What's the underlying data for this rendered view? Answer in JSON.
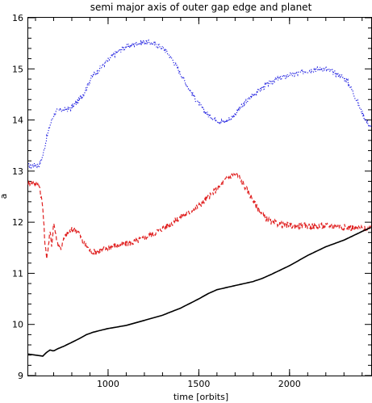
{
  "chart_data": {
    "type": "line",
    "title": "semi major axis of outer gap edge and planet",
    "xlabel": "time [orbits]",
    "ylabel": "a",
    "xlim": [
      560,
      2450
    ],
    "ylim": [
      9,
      16
    ],
    "xticks": [
      1000,
      1500,
      2000
    ],
    "yticks": [
      9,
      10,
      11,
      12,
      13,
      14,
      15,
      16
    ],
    "grid": false,
    "series": [
      {
        "color": "#2020e0",
        "style": "dotted",
        "noise": 0.05,
        "x": [
          560,
          620,
          640,
          660,
          680,
          700,
          720,
          760,
          790,
          830,
          850,
          870,
          890,
          910,
          940,
          980,
          1010,
          1040,
          1080,
          1120,
          1160,
          1200,
          1240,
          1280,
          1320,
          1360,
          1400,
          1440,
          1480,
          1520,
          1560,
          1600,
          1640,
          1660,
          1690,
          1720,
          1760,
          1800,
          1840,
          1880,
          1920,
          1960,
          2000,
          2040,
          2080,
          2120,
          2160,
          2200,
          2230,
          2260,
          2290,
          2320,
          2350,
          2380,
          2400,
          2420,
          2440,
          2450
        ],
        "y": [
          13.1,
          13.12,
          13.3,
          13.62,
          13.9,
          14.1,
          14.18,
          14.2,
          14.22,
          14.35,
          14.45,
          14.55,
          14.7,
          14.85,
          14.95,
          15.1,
          15.2,
          15.3,
          15.4,
          15.45,
          15.5,
          15.53,
          15.5,
          15.45,
          15.35,
          15.15,
          14.9,
          14.65,
          14.42,
          14.22,
          14.07,
          14.0,
          13.96,
          14.0,
          14.08,
          14.2,
          14.35,
          14.5,
          14.6,
          14.7,
          14.78,
          14.83,
          14.88,
          14.9,
          14.95,
          14.98,
          15.0,
          15.0,
          14.95,
          14.9,
          14.85,
          14.75,
          14.55,
          14.3,
          14.15,
          14.0,
          13.9,
          13.85
        ]
      },
      {
        "color": "#e02020",
        "style": "dashed",
        "noise": 0.06,
        "x": [
          560,
          620,
          640,
          650,
          660,
          670,
          680,
          690,
          700,
          720,
          740,
          760,
          780,
          800,
          820,
          840,
          860,
          880,
          900,
          920,
          960,
          1000,
          1050,
          1100,
          1150,
          1200,
          1250,
          1300,
          1350,
          1400,
          1450,
          1500,
          1550,
          1600,
          1640,
          1670,
          1700,
          1720,
          1740,
          1780,
          1820,
          1860,
          1900,
          1960,
          2020,
          2080,
          2140,
          2200,
          2260,
          2320,
          2380,
          2420,
          2450
        ],
        "y": [
          12.78,
          12.75,
          12.3,
          11.7,
          11.3,
          11.5,
          11.8,
          11.55,
          12.0,
          11.6,
          11.5,
          11.7,
          11.8,
          11.85,
          11.85,
          11.8,
          11.6,
          11.55,
          11.45,
          11.42,
          11.45,
          11.5,
          11.55,
          11.58,
          11.62,
          11.7,
          11.78,
          11.88,
          11.98,
          12.1,
          12.2,
          12.32,
          12.48,
          12.65,
          12.8,
          12.9,
          12.93,
          12.9,
          12.78,
          12.55,
          12.3,
          12.1,
          12.0,
          11.95,
          11.93,
          11.93,
          11.92,
          11.93,
          11.92,
          11.9,
          11.88,
          11.87,
          11.85
        ]
      },
      {
        "color": "#000000",
        "style": "solid",
        "noise": 0,
        "x": [
          560,
          600,
          640,
          660,
          680,
          700,
          720,
          760,
          800,
          840,
          880,
          920,
          1000,
          1100,
          1200,
          1300,
          1400,
          1500,
          1550,
          1600,
          1650,
          1700,
          1750,
          1800,
          1850,
          1900,
          2000,
          2100,
          2200,
          2300,
          2400,
          2450
        ],
        "y": [
          9.42,
          9.4,
          9.38,
          9.45,
          9.5,
          9.48,
          9.52,
          9.58,
          9.65,
          9.72,
          9.8,
          9.85,
          9.92,
          9.98,
          10.08,
          10.18,
          10.32,
          10.5,
          10.6,
          10.68,
          10.72,
          10.76,
          10.8,
          10.84,
          10.9,
          10.98,
          11.15,
          11.35,
          11.52,
          11.65,
          11.82,
          11.9
        ]
      }
    ]
  }
}
